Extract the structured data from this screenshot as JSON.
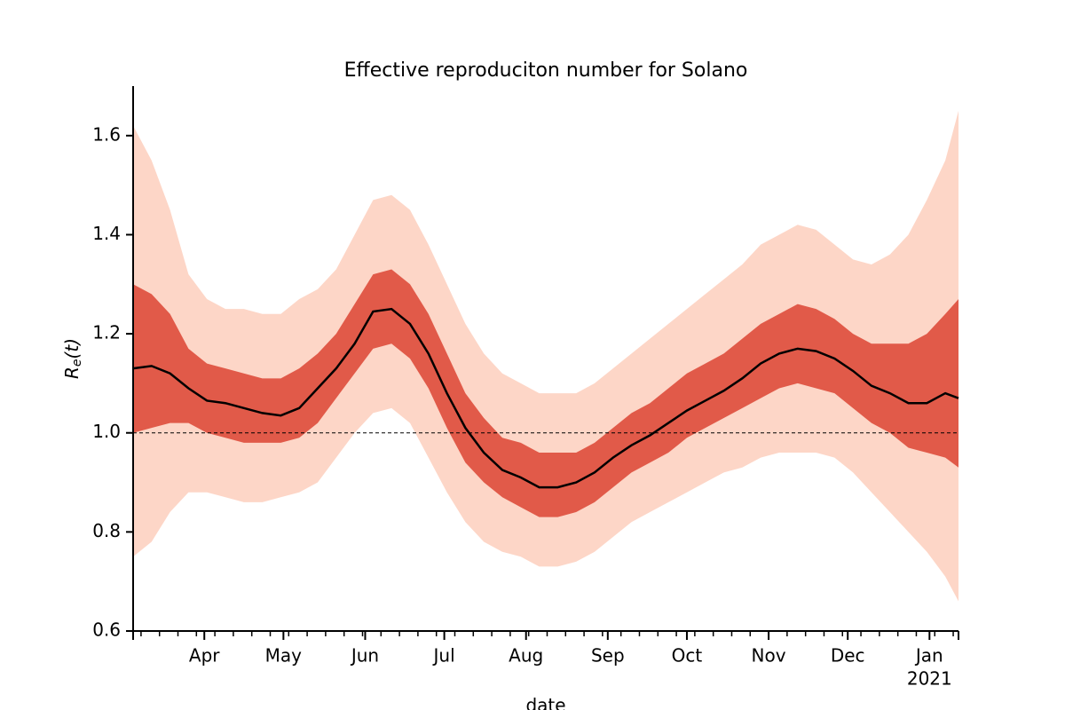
{
  "chart_data": {
    "type": "band-line",
    "title": "Effective reproduciton number for Solano",
    "xlabel": "date",
    "ylabel": [
      "R",
      "e",
      "(t)"
    ],
    "x": [
      "2020-03-05",
      "2020-03-12",
      "2020-03-19",
      "2020-03-26",
      "2020-04-02",
      "2020-04-09",
      "2020-04-16",
      "2020-04-23",
      "2020-04-30",
      "2020-05-07",
      "2020-05-14",
      "2020-05-21",
      "2020-05-28",
      "2020-06-04",
      "2020-06-11",
      "2020-06-18",
      "2020-06-25",
      "2020-07-02",
      "2020-07-09",
      "2020-07-16",
      "2020-07-23",
      "2020-07-30",
      "2020-08-06",
      "2020-08-13",
      "2020-08-20",
      "2020-08-27",
      "2020-09-03",
      "2020-09-10",
      "2020-09-17",
      "2020-09-24",
      "2020-10-01",
      "2020-10-08",
      "2020-10-15",
      "2020-10-22",
      "2020-10-29",
      "2020-11-05",
      "2020-11-12",
      "2020-11-19",
      "2020-11-26",
      "2020-12-03",
      "2020-12-10",
      "2020-12-17",
      "2020-12-24",
      "2020-12-31",
      "2021-01-07",
      "2021-01-12"
    ],
    "bands": [
      {
        "color": "#fcbba1",
        "upper": [
          1.62,
          1.55,
          1.45,
          1.32,
          1.27,
          1.25,
          1.25,
          1.24,
          1.24,
          1.27,
          1.29,
          1.33,
          1.4,
          1.47,
          1.48,
          1.45,
          1.38,
          1.3,
          1.22,
          1.16,
          1.12,
          1.1,
          1.08,
          1.08,
          1.08,
          1.1,
          1.13,
          1.16,
          1.19,
          1.22,
          1.25,
          1.28,
          1.31,
          1.34,
          1.38,
          1.4,
          1.42,
          1.41,
          1.38,
          1.35,
          1.34,
          1.36,
          1.4,
          1.47,
          1.55,
          1.65
        ],
        "lower": [
          0.75,
          0.78,
          0.84,
          0.88,
          0.88,
          0.87,
          0.86,
          0.86,
          0.87,
          0.88,
          0.9,
          0.95,
          1.0,
          1.04,
          1.05,
          1.02,
          0.95,
          0.88,
          0.82,
          0.78,
          0.76,
          0.75,
          0.73,
          0.73,
          0.74,
          0.76,
          0.79,
          0.82,
          0.84,
          0.86,
          0.88,
          0.9,
          0.92,
          0.93,
          0.95,
          0.96,
          0.96,
          0.96,
          0.95,
          0.92,
          0.88,
          0.84,
          0.8,
          0.76,
          0.71,
          0.66
        ]
      },
      {
        "color": "#d7301f",
        "upper": [
          1.3,
          1.28,
          1.24,
          1.17,
          1.14,
          1.13,
          1.12,
          1.11,
          1.11,
          1.13,
          1.16,
          1.2,
          1.26,
          1.32,
          1.33,
          1.3,
          1.24,
          1.16,
          1.08,
          1.03,
          0.99,
          0.98,
          0.96,
          0.96,
          0.96,
          0.98,
          1.01,
          1.04,
          1.06,
          1.09,
          1.12,
          1.14,
          1.16,
          1.19,
          1.22,
          1.24,
          1.26,
          1.25,
          1.23,
          1.2,
          1.18,
          1.18,
          1.18,
          1.2,
          1.24,
          1.27
        ],
        "lower": [
          1.0,
          1.01,
          1.02,
          1.02,
          1.0,
          0.99,
          0.98,
          0.98,
          0.98,
          0.99,
          1.02,
          1.07,
          1.12,
          1.17,
          1.18,
          1.15,
          1.09,
          1.01,
          0.94,
          0.9,
          0.87,
          0.85,
          0.83,
          0.83,
          0.84,
          0.86,
          0.89,
          0.92,
          0.94,
          0.96,
          0.99,
          1.01,
          1.03,
          1.05,
          1.07,
          1.09,
          1.1,
          1.09,
          1.08,
          1.05,
          1.02,
          1.0,
          0.97,
          0.96,
          0.95,
          0.93
        ]
      }
    ],
    "series": [
      {
        "color": "#000000",
        "values": [
          1.13,
          1.135,
          1.12,
          1.09,
          1.065,
          1.06,
          1.05,
          1.04,
          1.035,
          1.05,
          1.09,
          1.13,
          1.18,
          1.245,
          1.25,
          1.22,
          1.16,
          1.08,
          1.01,
          0.96,
          0.925,
          0.91,
          0.89,
          0.89,
          0.9,
          0.92,
          0.95,
          0.975,
          0.995,
          1.02,
          1.045,
          1.065,
          1.085,
          1.11,
          1.14,
          1.16,
          1.17,
          1.165,
          1.15,
          1.125,
          1.095,
          1.08,
          1.06,
          1.06,
          1.08,
          1.07
        ]
      }
    ],
    "hline": 1,
    "xlim": [
      "2020-03-05",
      "2021-01-12"
    ],
    "xticks": [
      {
        "value": "2020-04-01",
        "label": "Apr"
      },
      {
        "value": "2020-05-01",
        "label": "May"
      },
      {
        "value": "2020-06-01",
        "label": "Jun"
      },
      {
        "value": "2020-07-01",
        "label": "Jul"
      },
      {
        "value": "2020-08-01",
        "label": "Aug"
      },
      {
        "value": "2020-09-01",
        "label": "Sep"
      },
      {
        "value": "2020-10-01",
        "label": "Oct"
      },
      {
        "value": "2020-11-01",
        "label": "Nov"
      },
      {
        "value": "2020-12-01",
        "label": "Dec"
      },
      {
        "value": "2021-01-01",
        "label": "Jan",
        "sublabel": "2021"
      }
    ],
    "xminorticks": [
      "2020-03-08",
      "2020-03-15",
      "2020-03-22",
      "2020-03-29",
      "2020-04-05",
      "2020-04-12",
      "2020-04-19",
      "2020-04-26",
      "2020-05-03",
      "2020-05-10",
      "2020-05-17",
      "2020-05-24",
      "2020-05-31",
      "2020-06-07",
      "2020-06-14",
      "2020-06-21",
      "2020-06-28",
      "2020-07-05",
      "2020-07-12",
      "2020-07-19",
      "2020-07-26",
      "2020-08-02",
      "2020-08-09",
      "2020-08-16",
      "2020-08-23",
      "2020-08-30",
      "2020-09-06",
      "2020-09-13",
      "2020-09-20",
      "2020-09-27",
      "2020-10-04",
      "2020-10-11",
      "2020-10-18",
      "2020-10-25",
      "2020-11-01",
      "2020-11-08",
      "2020-11-15",
      "2020-11-22",
      "2020-11-29",
      "2020-12-06",
      "2020-12-13",
      "2020-12-20",
      "2020-12-27",
      "2021-01-03",
      "2021-01-10"
    ],
    "ylim": [
      0.6,
      1.7
    ],
    "yticks": [
      0.6,
      0.8,
      {
        "value": 1,
        "label": "1.0"
      },
      1.2,
      1.4,
      1.6
    ]
  }
}
